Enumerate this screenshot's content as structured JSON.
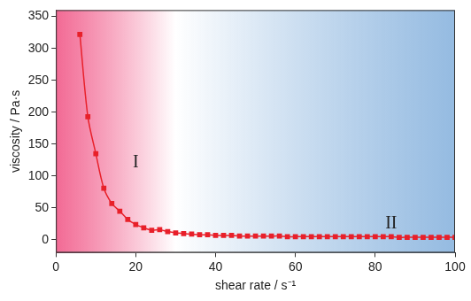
{
  "chart_data": {
    "type": "line",
    "x_label": "shear rate / s⁻¹",
    "y_label": "viscosity / Pa·s",
    "x": [
      6,
      8,
      10,
      12,
      14,
      16,
      18,
      20,
      22,
      24,
      26,
      28,
      30,
      32,
      34,
      36,
      38,
      40,
      42,
      44,
      46,
      48,
      50,
      52,
      54,
      56,
      58,
      60,
      62,
      64,
      66,
      68,
      70,
      72,
      74,
      76,
      78,
      80,
      82,
      84,
      86,
      88,
      90,
      92,
      94,
      96,
      98,
      100
    ],
    "values": [
      322,
      193,
      135,
      81,
      57,
      45,
      32,
      24,
      19,
      15,
      16,
      13,
      11,
      10,
      9,
      8,
      8,
      7,
      7,
      7,
      6,
      6,
      6,
      6,
      6,
      6,
      5,
      5,
      5,
      5,
      5,
      5,
      5,
      5,
      5,
      5,
      5,
      5,
      5,
      5,
      4,
      4,
      4,
      4,
      4,
      4,
      4,
      4
    ],
    "color": "#e8202a",
    "marker": "square",
    "line_style": "solid",
    "xlim": [
      0,
      100
    ],
    "xticks": [
      0,
      20,
      40,
      60,
      80,
      100
    ],
    "ylim": [
      -20,
      360
    ],
    "yticks": [
      0,
      50,
      100,
      150,
      200,
      250,
      300,
      350
    ],
    "grid": false,
    "annotations": [
      {
        "text": "I",
        "x": 20,
        "y": 121
      },
      {
        "text": "II",
        "x": 84,
        "y": 25
      }
    ]
  }
}
